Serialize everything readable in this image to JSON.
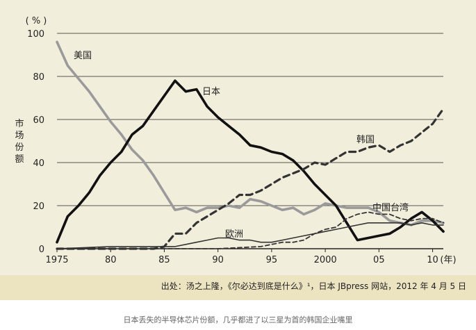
{
  "chart_data": {
    "type": "line",
    "unit_label": "( % )",
    "ylabel": "市场份额",
    "xlabel": "(年)",
    "ylim": [
      0,
      100
    ],
    "xlim": [
      1975,
      2011
    ],
    "grid": true,
    "y_ticks": [
      0,
      20,
      40,
      60,
      80,
      100
    ],
    "x_ticks": [
      {
        "value": 1975,
        "label": "1975"
      },
      {
        "value": 1980,
        "label": "80"
      },
      {
        "value": 1985,
        "label": "85"
      },
      {
        "value": 1990,
        "label": "90"
      },
      {
        "value": 1995,
        "label": "95"
      },
      {
        "value": 2000,
        "label": "2000"
      },
      {
        "value": 2005,
        "label": "05"
      },
      {
        "value": 2010,
        "label": "10"
      }
    ],
    "series": [
      {
        "name": "美国",
        "color": "#9a9a9a",
        "dash": "solid",
        "x": [
          1975,
          1976,
          1977,
          1978,
          1979,
          1980,
          1981,
          1982,
          1983,
          1984,
          1985,
          1986,
          1987,
          1988,
          1989,
          1990,
          1991,
          1992,
          1993,
          1994,
          1995,
          1996,
          1997,
          1998,
          1999,
          2000,
          2001,
          2002,
          2003,
          2004,
          2005,
          2006,
          2007,
          2008,
          2009,
          2010,
          2011
        ],
        "y": [
          96,
          85,
          79,
          73,
          66,
          59,
          53,
          46,
          41,
          34,
          26,
          18,
          19,
          17,
          19,
          19,
          20,
          19,
          23,
          22,
          20,
          18,
          19,
          16,
          18,
          21,
          20,
          19,
          19,
          19,
          17,
          13,
          12,
          11,
          13,
          13,
          12
        ]
      },
      {
        "name": "日本",
        "color": "#111111",
        "dash": "solid",
        "x": [
          1975,
          1976,
          1977,
          1978,
          1979,
          1980,
          1981,
          1982,
          1983,
          1984,
          1985,
          1986,
          1987,
          1988,
          1989,
          1990,
          1991,
          1992,
          1993,
          1994,
          1995,
          1996,
          1997,
          1998,
          1999,
          2000,
          2001,
          2002,
          2003,
          2004,
          2005,
          2006,
          2007,
          2008,
          2009,
          2010,
          2011
        ],
        "y": [
          3,
          15,
          20,
          26,
          34,
          40,
          45,
          53,
          57,
          64,
          71,
          78,
          73,
          74,
          66,
          61,
          57,
          53,
          48,
          47,
          45,
          44,
          41,
          36,
          30,
          25,
          20,
          12,
          4,
          5,
          6,
          7,
          10,
          14,
          17,
          13,
          8
        ]
      },
      {
        "name": "韩国",
        "color": "#333333",
        "dash": "dashed",
        "x": [
          1975,
          1984,
          1985,
          1986,
          1987,
          1988,
          1989,
          1990,
          1991,
          1992,
          1993,
          1994,
          1995,
          1996,
          1997,
          1998,
          1999,
          2000,
          2001,
          2002,
          2003,
          2004,
          2005,
          2006,
          2007,
          2008,
          2009,
          2010,
          2011
        ],
        "y": [
          0,
          0,
          1,
          7,
          7,
          12,
          15,
          18,
          21,
          25,
          25,
          27,
          30,
          33,
          35,
          37,
          40,
          39,
          42,
          45,
          45,
          47,
          48,
          45,
          48,
          50,
          54,
          58,
          65
        ]
      },
      {
        "name": "欧洲",
        "color": "#333333",
        "dash": "solid-thin",
        "x": [
          1975,
          1980,
          1985,
          1986,
          1987,
          1988,
          1989,
          1990,
          1991,
          1992,
          1993,
          1994,
          1995,
          1996,
          1997,
          1998,
          1999,
          2000,
          2001,
          2002,
          2003,
          2004,
          2005,
          2006,
          2007,
          2008,
          2009,
          2010,
          2011
        ],
        "y": [
          0,
          1,
          1,
          1,
          2,
          3,
          4,
          5,
          5,
          4,
          4,
          3,
          3,
          4,
          5,
          6,
          7,
          8,
          9,
          10,
          11,
          12,
          12,
          12,
          12,
          11,
          12,
          11,
          11
        ]
      },
      {
        "name": "中国台湾",
        "color": "#333333",
        "dash": "dashed-thin",
        "x": [
          1975,
          1990,
          1994,
          1995,
          1996,
          1997,
          1998,
          1999,
          2000,
          2001,
          2002,
          2003,
          2004,
          2005,
          2006,
          2007,
          2008,
          2009,
          2010,
          2011
        ],
        "y": [
          0,
          0,
          1,
          2,
          3,
          3,
          4,
          7,
          9,
          10,
          14,
          16,
          17,
          16,
          16,
          14,
          13,
          14,
          14,
          12
        ]
      }
    ],
    "annotations": [
      {
        "text": "美国",
        "series": "美国"
      },
      {
        "text": "日本",
        "series": "日本"
      },
      {
        "text": "韩国",
        "series": "韩国"
      },
      {
        "text": "欧洲",
        "series": "欧洲"
      },
      {
        "text": "中国台湾",
        "series": "中国台湾"
      }
    ]
  },
  "source": "出处：汤之上隆，《尔必达到底是什么》¹，日本 JBpress 网站，2012 年 4 月 5 日",
  "caption": "日本丢失的半导体芯片份额，几乎都进了以三星为首的韩国企业嘴里"
}
